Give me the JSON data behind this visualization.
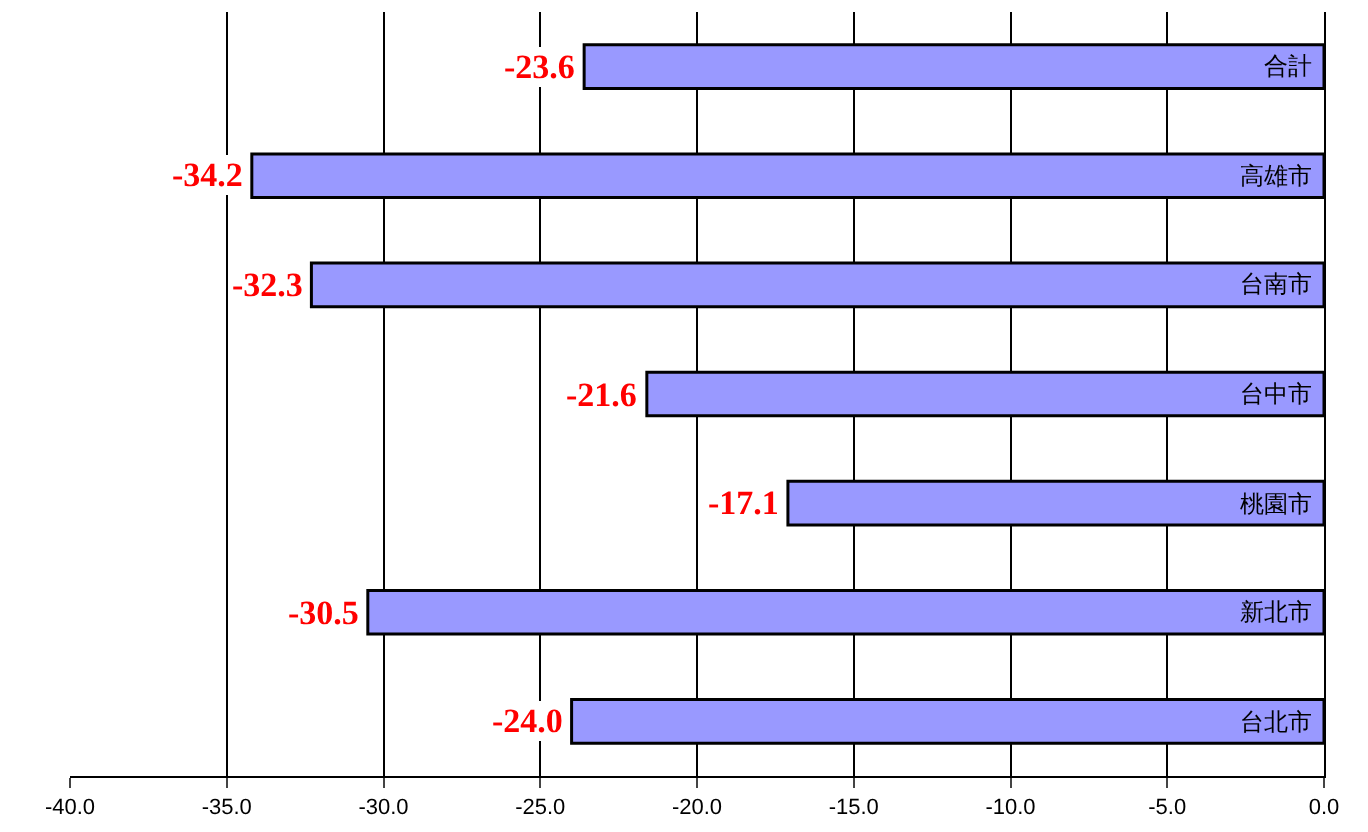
{
  "chart_data": {
    "type": "bar",
    "orientation": "horizontal",
    "categories": [
      "合計",
      "高雄市",
      "台南市",
      "台中市",
      "桃園市",
      "新北市",
      "台北市"
    ],
    "values": [
      -23.6,
      -34.2,
      -32.3,
      -21.6,
      -17.1,
      -30.5,
      -24.0
    ],
    "value_labels": [
      "-23.6",
      "-34.2",
      "-32.3",
      "-21.6",
      "-17.1",
      "-30.5",
      "-24.0"
    ],
    "color": "#9999ff",
    "xlim": [
      -40,
      0
    ],
    "xticks": [
      {
        "value": -40,
        "label": "-40.0"
      },
      {
        "value": -35,
        "label": "-35.0"
      },
      {
        "value": -30,
        "label": "-30.0"
      },
      {
        "value": -25,
        "label": "-25.0"
      },
      {
        "value": -20,
        "label": "-20.0"
      },
      {
        "value": -15,
        "label": "-15.0"
      },
      {
        "value": -10,
        "label": "-10.0"
      },
      {
        "value": -5,
        "label": "-5.0"
      },
      {
        "value": 0,
        "label": "0.0"
      }
    ],
    "grid": "x",
    "legend": false
  }
}
